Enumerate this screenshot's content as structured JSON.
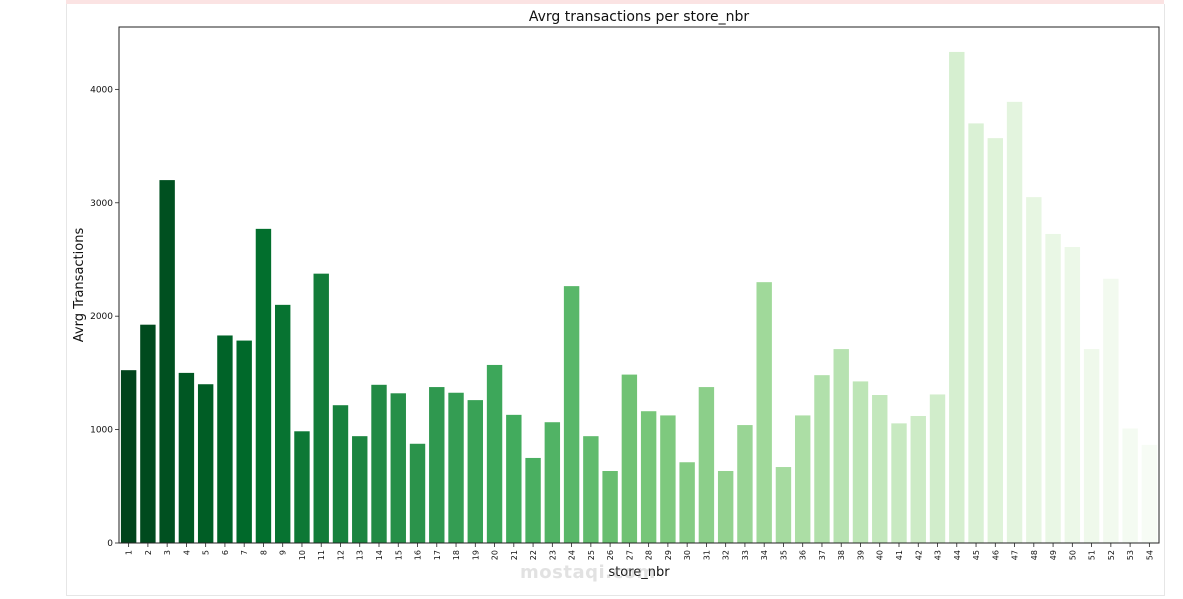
{
  "watermark": "mostaqi.com",
  "chart_data": {
    "type": "bar",
    "title": "Avrg transactions per store_nbr",
    "xlabel": "store_nbr",
    "ylabel": "Avrg Transactions",
    "ylim": [
      0,
      4550
    ],
    "yticks": [
      0,
      1000,
      2000,
      3000,
      4000
    ],
    "grid": false,
    "legend": "none",
    "palette": "Greens_r",
    "color_start": "#00441b",
    "color_end": "#f7fcf5",
    "categories": [
      "1",
      "2",
      "3",
      "4",
      "5",
      "6",
      "7",
      "8",
      "9",
      "10",
      "11",
      "12",
      "13",
      "14",
      "15",
      "16",
      "17",
      "18",
      "19",
      "20",
      "21",
      "22",
      "23",
      "24",
      "25",
      "26",
      "27",
      "28",
      "29",
      "30",
      "31",
      "32",
      "33",
      "34",
      "35",
      "36",
      "37",
      "38",
      "39",
      "40",
      "41",
      "42",
      "43",
      "44",
      "45",
      "46",
      "47",
      "48",
      "49",
      "50",
      "51",
      "52",
      "53",
      "54"
    ],
    "values": [
      1524,
      1925,
      3200,
      1500,
      1400,
      1830,
      1785,
      2770,
      2100,
      985,
      2375,
      1215,
      942,
      1395,
      1320,
      875,
      1375,
      1325,
      1260,
      1570,
      1130,
      750,
      1065,
      2265,
      942,
      635,
      1485,
      1162,
      1125,
      712,
      1375,
      635,
      1040,
      2300,
      670,
      1125,
      1480,
      1710,
      1425,
      1305,
      1055,
      1120,
      1310,
      4330,
      3700,
      3570,
      3890,
      3050,
      2725,
      2610,
      1710,
      2330,
      1010,
      865
    ]
  }
}
